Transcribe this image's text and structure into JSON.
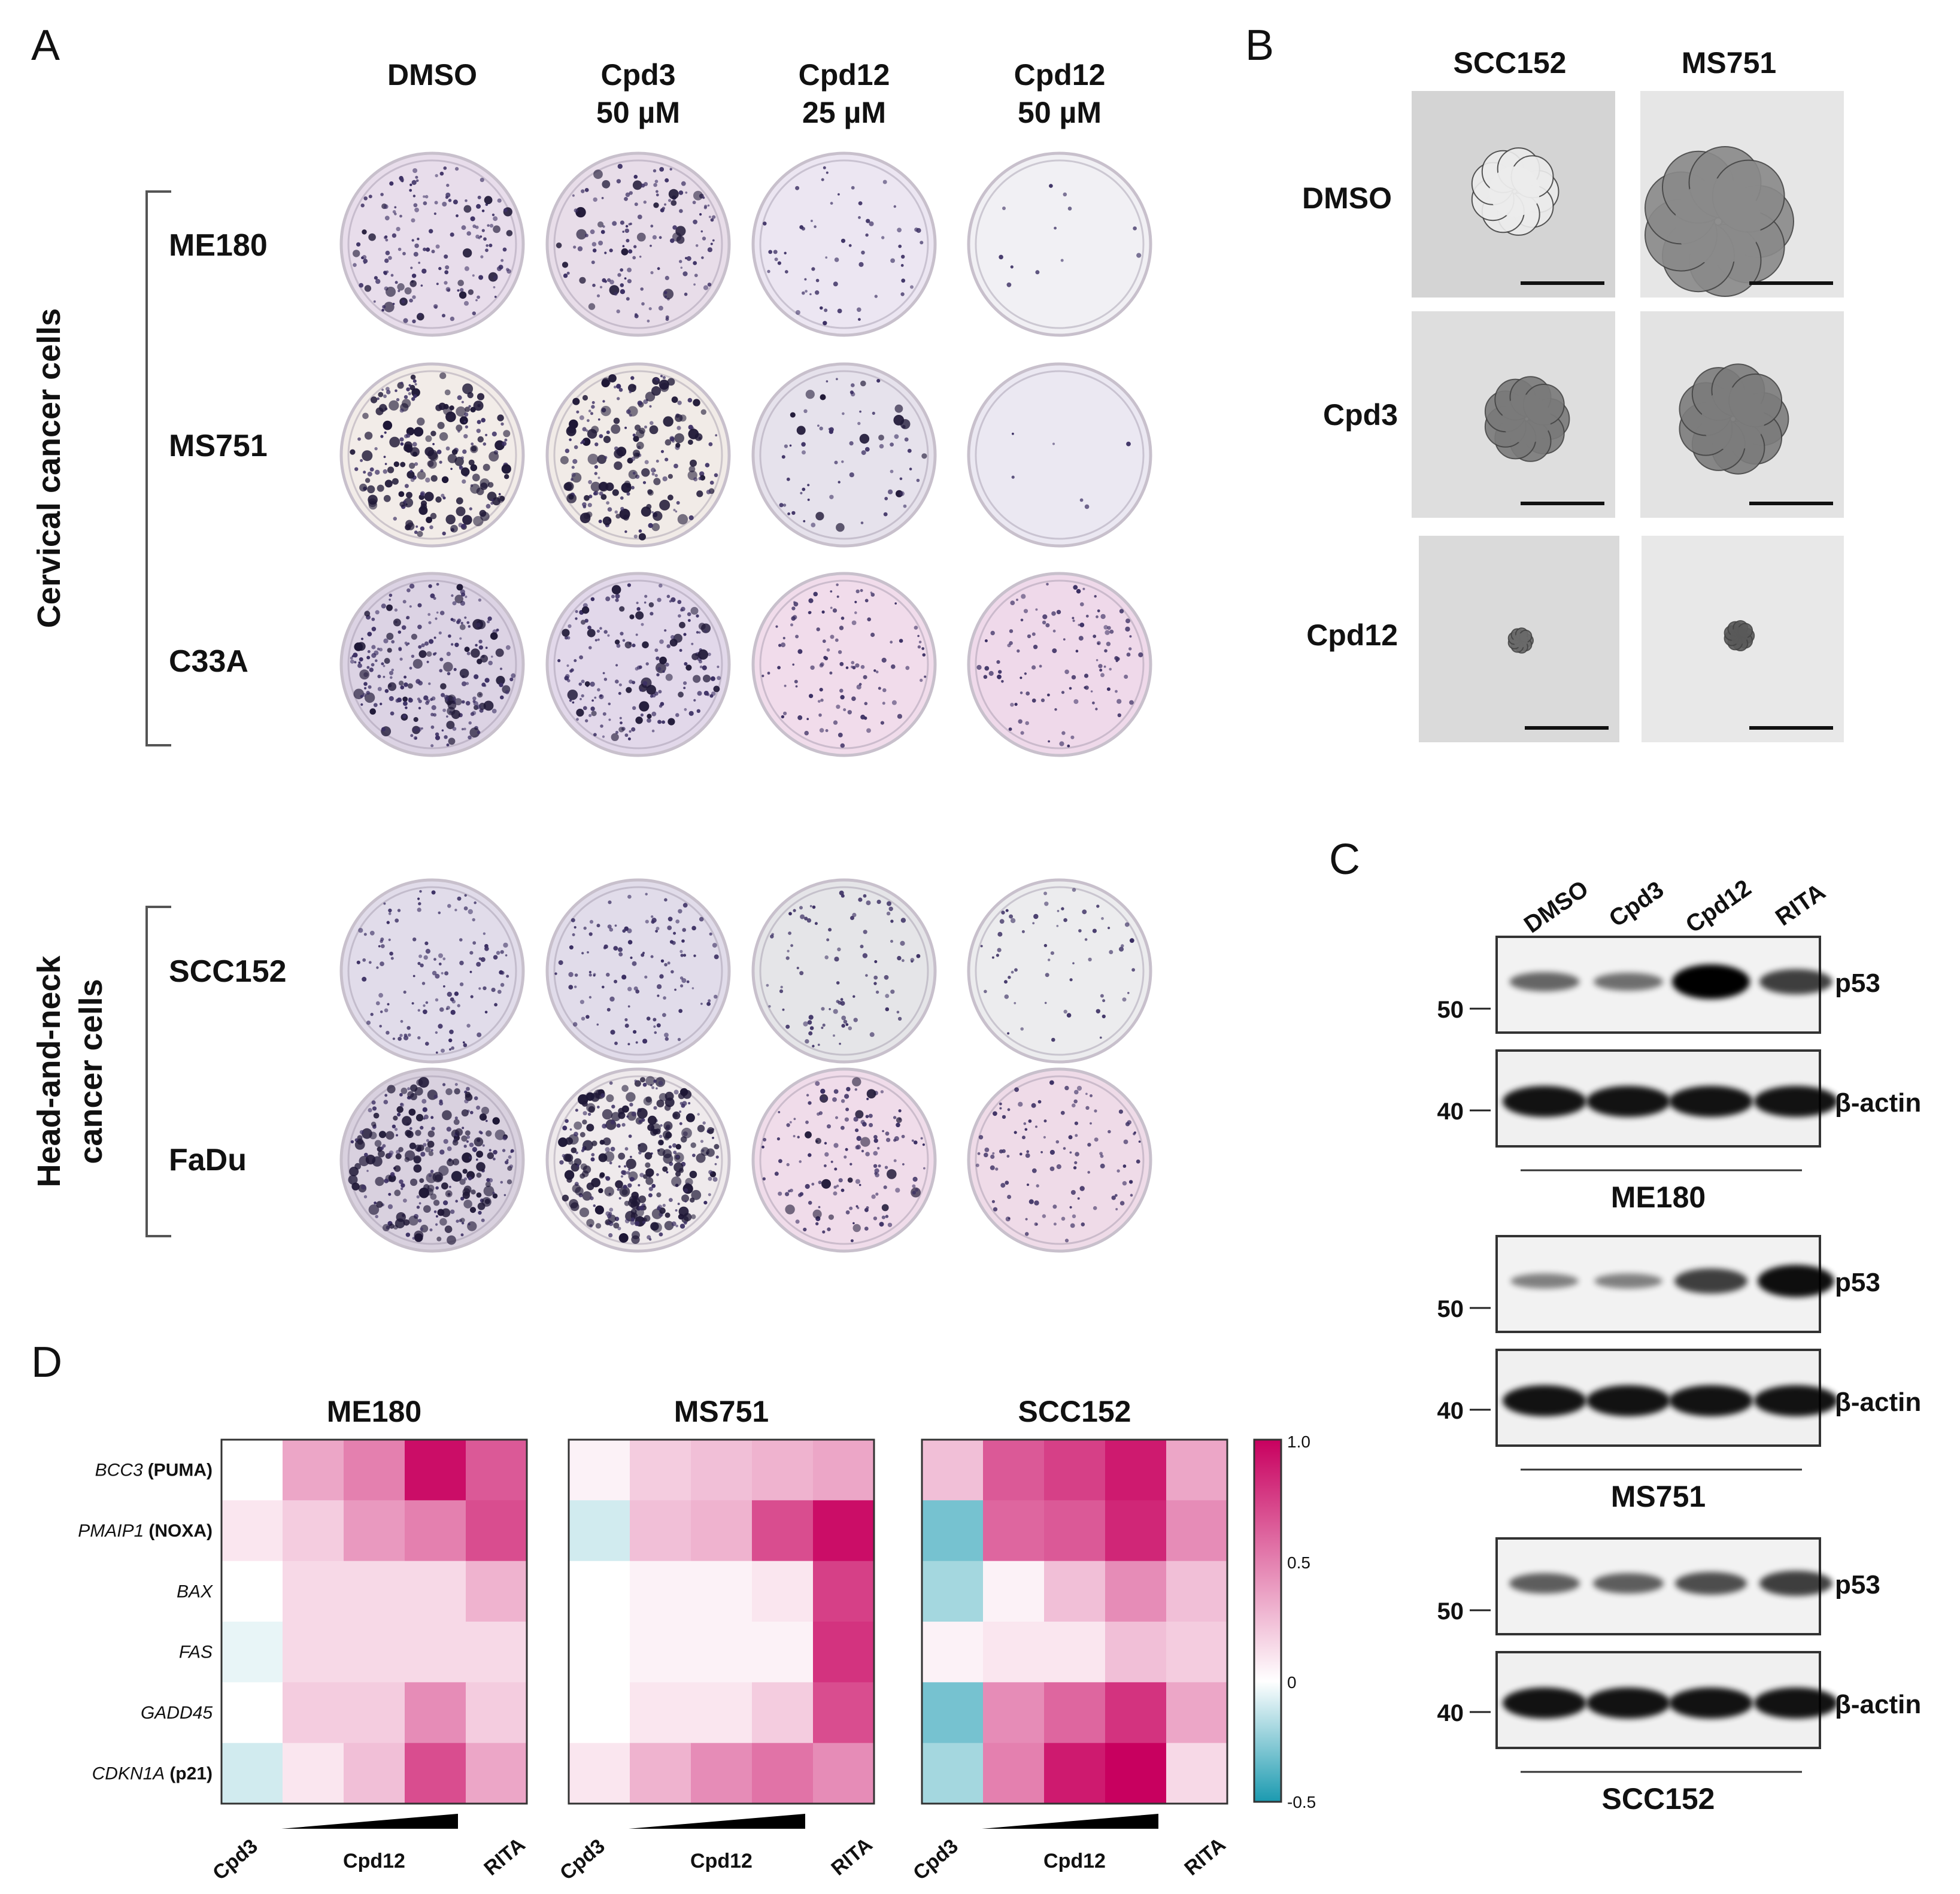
{
  "panels": [
    "A",
    "B",
    "C",
    "D"
  ],
  "panel_a": {
    "columns": [
      {
        "line1": "DMSO",
        "line2": ""
      },
      {
        "line1": "Cpd3",
        "line2": "50 µM"
      },
      {
        "line1": "Cpd12",
        "line2": "25 µM"
      },
      {
        "line1": "Cpd12",
        "line2": "50 µM"
      }
    ],
    "groups": [
      {
        "label": "Cervical cancer cells",
        "label2": "",
        "rows": [
          "ME180",
          "MS751",
          "C33A"
        ]
      },
      {
        "label": "Head-and-neck",
        "label2": "cancer cells",
        "rows": [
          "SCC152",
          "FaDu"
        ]
      }
    ]
  },
  "panel_b": {
    "columns": [
      "SCC152",
      "MS751"
    ],
    "rows": [
      "DMSO",
      "Cpd3",
      "Cpd12"
    ]
  },
  "panel_c": {
    "lanes": [
      "DMSO",
      "Cpd3",
      "Cpd12",
      "RITA"
    ],
    "blots": [
      {
        "cell_line": "ME180",
        "p53_label": "p53",
        "actin_label": "β-actin",
        "mw_p53": "50",
        "mw_actin": "40",
        "p53_intensity": [
          0.35,
          0.3,
          1.0,
          0.6
        ]
      },
      {
        "cell_line": "MS751",
        "p53_label": "p53",
        "actin_label": "β-actin",
        "mw_p53": "50",
        "mw_actin": "40",
        "p53_intensity": [
          0.18,
          0.18,
          0.6,
          0.9
        ]
      },
      {
        "cell_line": "SCC152",
        "p53_label": "p53",
        "actin_label": "β-actin",
        "mw_p53": "50",
        "mw_actin": "40",
        "p53_intensity": [
          0.4,
          0.4,
          0.5,
          0.6
        ]
      }
    ]
  },
  "chart_data": {
    "type": "heatmap",
    "genes": [
      {
        "name": "BCC3",
        "alias": "(PUMA)"
      },
      {
        "name": "PMAIP1",
        "alias": "(NOXA)"
      },
      {
        "name": "BAX",
        "alias": ""
      },
      {
        "name": "FAS",
        "alias": ""
      },
      {
        "name": "GADD45",
        "alias": ""
      },
      {
        "name": "CDKN1A",
        "alias": "(p21)"
      }
    ],
    "x_labels": {
      "left": "Cpd3",
      "middle": "Cpd12",
      "right": "RITA"
    },
    "colorbar": {
      "min": -0.5,
      "max": 1.0,
      "ticks": [
        "1.0",
        "0.5",
        "0",
        "-0.5"
      ],
      "low_color": "#1b9ab0",
      "mid_color": "#ffffff",
      "high_color": "#c8005f"
    },
    "maps": [
      {
        "title": "ME180",
        "values": [
          [
            0.0,
            0.35,
            0.5,
            0.95,
            0.65
          ],
          [
            0.1,
            0.2,
            0.4,
            0.5,
            0.7
          ],
          [
            0.0,
            0.15,
            0.15,
            0.15,
            0.3
          ],
          [
            -0.05,
            0.15,
            0.15,
            0.15,
            0.15
          ],
          [
            0.0,
            0.2,
            0.2,
            0.45,
            0.2
          ],
          [
            -0.1,
            0.1,
            0.25,
            0.7,
            0.35
          ]
        ]
      },
      {
        "title": "MS751",
        "values": [
          [
            0.05,
            0.2,
            0.25,
            0.3,
            0.35
          ],
          [
            -0.1,
            0.25,
            0.3,
            0.7,
            0.95
          ],
          [
            0.0,
            0.05,
            0.05,
            0.1,
            0.75
          ],
          [
            0.0,
            0.05,
            0.05,
            0.05,
            0.8
          ],
          [
            0.0,
            0.1,
            0.1,
            0.2,
            0.7
          ],
          [
            0.1,
            0.3,
            0.45,
            0.55,
            0.45
          ]
        ]
      },
      {
        "title": "SCC152",
        "values": [
          [
            0.25,
            0.65,
            0.75,
            0.9,
            0.35
          ],
          [
            -0.3,
            0.6,
            0.65,
            0.85,
            0.45
          ],
          [
            -0.2,
            0.05,
            0.25,
            0.45,
            0.25
          ],
          [
            0.05,
            0.1,
            0.1,
            0.25,
            0.2
          ],
          [
            -0.3,
            0.45,
            0.6,
            0.8,
            0.35
          ],
          [
            -0.2,
            0.5,
            0.9,
            1.0,
            0.15
          ]
        ]
      }
    ]
  }
}
